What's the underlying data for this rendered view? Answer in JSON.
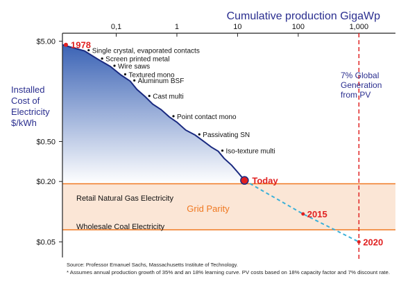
{
  "chart_data": {
    "type": "line",
    "title": "Cumulative production GigaWp",
    "xlabel": "Cumulative production GigaWp",
    "ylabel": "Installed Cost of Electricity $/kWh",
    "ylabel_lines": [
      "Installed",
      "Cost of",
      "Electricity",
      "$/kWh"
    ],
    "x_scale": "log",
    "y_scale": "log",
    "xlim": [
      0.013,
      4000
    ],
    "ylim": [
      0.035,
      6.0
    ],
    "x_ticks": [
      0.1,
      1,
      10,
      100,
      1000
    ],
    "x_tick_labels": [
      "0,1",
      "1",
      "10",
      "100",
      "1,000"
    ],
    "y_ticks": [
      5.0,
      0.5,
      0.2,
      0.05
    ],
    "y_tick_labels": [
      "$5.00",
      "$0.50",
      "$0.20",
      "$0.05"
    ],
    "historical_curve": {
      "x": [
        0.013,
        0.03,
        0.05,
        0.08,
        0.12,
        0.17,
        0.22,
        0.3,
        0.4,
        0.55,
        0.75,
        1.0,
        1.4,
        2.0,
        2.8,
        3.7,
        4.8,
        6.0,
        8.0,
        10.5,
        13.0
      ],
      "y": [
        4.6,
        4.0,
        3.3,
        2.8,
        2.3,
        2.0,
        1.65,
        1.4,
        1.18,
        1.04,
        0.88,
        0.78,
        0.65,
        0.58,
        0.5,
        0.44,
        0.4,
        0.34,
        0.29,
        0.24,
        0.205
      ]
    },
    "projection": {
      "x": [
        13.0,
        120,
        1000
      ],
      "y": [
        0.205,
        0.095,
        0.05
      ]
    },
    "milestones": [
      {
        "label": "1978",
        "x": 0.013,
        "y": 4.6
      },
      {
        "label": "Today",
        "x": 13.0,
        "y": 0.205
      },
      {
        "label": "2015",
        "x": 120,
        "y": 0.095
      },
      {
        "label": "2020",
        "x": 1000,
        "y": 0.05
      }
    ],
    "technology_annotations": [
      {
        "label": "Single crystal, evaporated contacts",
        "x": 0.03,
        "y": 4.0
      },
      {
        "label": "Screen printed metal",
        "x": 0.05,
        "y": 3.3
      },
      {
        "label": "Wire saws",
        "x": 0.08,
        "y": 2.8
      },
      {
        "label": "Textured  mono",
        "x": 0.12,
        "y": 2.3
      },
      {
        "label": "Aluminum BSF",
        "x": 0.17,
        "y": 2.0
      },
      {
        "label": "Cast multi",
        "x": 0.3,
        "y": 1.4
      },
      {
        "label": "Point contact mono",
        "x": 0.75,
        "y": 0.88
      },
      {
        "label": "Passivating SN",
        "x": 2.0,
        "y": 0.58
      },
      {
        "label": "Iso-texture multi",
        "x": 4.8,
        "y": 0.4
      }
    ],
    "grid_parity_band": {
      "label": "Grid Parity",
      "upper": {
        "label": "Retail Natural Gas Electricity",
        "y": 0.19
      },
      "lower": {
        "label": "Wholesale Coal Electricity",
        "y": 0.066
      }
    },
    "reference_line": {
      "x": 1000,
      "label_lines": [
        "7% Global",
        "Generation",
        "from PV"
      ]
    },
    "footnotes": [
      "Source: Professor Emanuel Sachs, Massachusetts Institute of Technology.",
      "* Assumes annual production growth of 35% and an 18% learning curve. PV costs based on 18% capacity factor and 7% discount rate."
    ],
    "colors": {
      "title": "#2a2e8f",
      "curve": "#1a2a80",
      "fill_top": "#3b63b5",
      "fill_bottom": "#ffffff",
      "milestone": "#e02020",
      "band_line": "#f07820",
      "band_fill": "#fbe6d6",
      "band_label": "#f07820",
      "projection": "#3ab0d8",
      "reference": "#e02020"
    }
  }
}
